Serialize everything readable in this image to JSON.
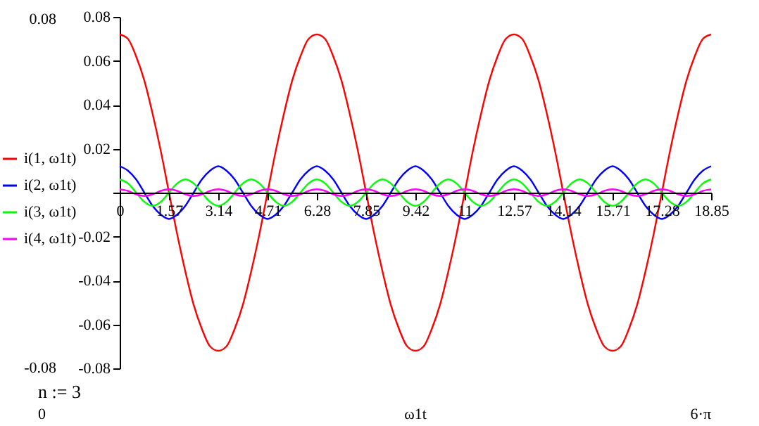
{
  "chart_data": {
    "type": "line",
    "xlabel": "ω1t",
    "x": [
      0,
      0.262,
      0.524,
      0.785,
      1.047,
      1.309,
      1.571,
      1.833,
      2.094,
      2.356,
      2.618,
      2.88,
      3.142,
      3.403,
      3.665,
      3.927,
      4.189,
      4.451,
      4.712,
      4.974,
      5.236,
      5.498,
      5.76,
      6.021,
      6.283,
      6.545,
      6.807,
      7.069,
      7.33,
      7.592,
      7.854,
      8.116,
      8.378,
      8.639,
      8.901,
      9.163,
      9.425,
      9.687,
      9.948,
      10.21,
      10.472,
      10.734,
      10.996,
      11.257,
      11.519,
      11.781,
      12.043,
      12.305,
      12.566,
      12.828,
      13.09,
      13.352,
      13.614,
      13.875,
      14.137,
      14.399,
      14.661,
      14.923,
      15.184,
      15.446,
      15.708,
      15.97,
      16.232,
      16.493,
      16.755,
      17.017,
      17.279,
      17.541,
      17.802,
      18.064,
      18.326,
      18.588,
      18.85
    ],
    "series": [
      {
        "name": "i(1, ω1t)",
        "color": "#ff0000",
        "values": [
          0.072,
          0.07,
          0.062,
          0.051,
          0.036,
          0.019,
          0,
          -0.019,
          -0.036,
          -0.051,
          -0.062,
          -0.07,
          -0.072,
          -0.07,
          -0.062,
          -0.051,
          -0.036,
          -0.019,
          0,
          0.019,
          0.036,
          0.051,
          0.062,
          0.07,
          0.072,
          0.07,
          0.062,
          0.051,
          0.036,
          0.019,
          0,
          -0.019,
          -0.036,
          -0.051,
          -0.062,
          -0.07,
          -0.072,
          -0.07,
          -0.062,
          -0.051,
          -0.036,
          -0.019,
          0,
          0.019,
          0.036,
          0.051,
          0.062,
          0.07,
          0.072,
          0.07,
          0.062,
          0.051,
          0.036,
          0.019,
          0,
          -0.019,
          -0.036,
          -0.051,
          -0.062,
          -0.07,
          -0.072,
          -0.07,
          -0.062,
          -0.051,
          -0.036,
          -0.019,
          0,
          0.019,
          0.036,
          0.051,
          0.062,
          0.07,
          0.072
        ]
      },
      {
        "name": "i(2, ω1t)",
        "color": "#0000ff",
        "values": [
          0.012,
          0.01,
          0.006,
          0,
          -0.006,
          -0.01,
          -0.012,
          -0.01,
          -0.006,
          0,
          0.006,
          0.01,
          0.012,
          0.01,
          0.006,
          0,
          -0.006,
          -0.01,
          -0.012,
          -0.01,
          -0.006,
          0,
          0.006,
          0.01,
          0.012,
          0.01,
          0.006,
          0,
          -0.006,
          -0.01,
          -0.012,
          -0.01,
          -0.006,
          0,
          0.006,
          0.01,
          0.012,
          0.01,
          0.006,
          0,
          -0.006,
          -0.01,
          -0.012,
          -0.01,
          -0.006,
          0,
          0.006,
          0.01,
          0.012,
          0.01,
          0.006,
          0,
          -0.006,
          -0.01,
          -0.012,
          -0.01,
          -0.006,
          0,
          0.006,
          0.01,
          0.012,
          0.01,
          0.006,
          0,
          -0.006,
          -0.01,
          -0.012,
          -0.01,
          -0.006,
          0,
          0.006,
          0.01,
          0.012
        ]
      },
      {
        "name": "i(3, ω1t)",
        "color": "#00ff00",
        "values": [
          0.006,
          0.0042,
          0,
          -0.0042,
          -0.006,
          -0.0042,
          0,
          0.0042,
          0.006,
          0.0042,
          0,
          -0.0042,
          -0.006,
          -0.0042,
          0,
          0.0042,
          0.006,
          0.0042,
          0,
          -0.0042,
          -0.006,
          -0.0042,
          0,
          0.0042,
          0.006,
          0.0042,
          0,
          -0.0042,
          -0.006,
          -0.0042,
          0,
          0.0042,
          0.006,
          0.0042,
          0,
          -0.0042,
          -0.006,
          -0.0042,
          0,
          0.0042,
          0.006,
          0.0042,
          0,
          -0.0042,
          -0.006,
          -0.0042,
          0,
          0.0042,
          0.006,
          0.0042,
          0,
          -0.0042,
          -0.006,
          -0.0042,
          0,
          0.0042,
          0.006,
          0.0042,
          0,
          -0.0042,
          -0.006,
          -0.0042,
          0,
          0.0042,
          0.006,
          0.0042,
          0,
          -0.0042,
          -0.006,
          -0.0042,
          0,
          0.0042,
          0.006
        ]
      },
      {
        "name": "i(4, ω1t)",
        "color": "#ff00ff",
        "values": [
          0.0015,
          0.0008,
          -0.0008,
          -0.0015,
          -0.0008,
          0.0008,
          0.0015,
          0.0008,
          -0.0008,
          -0.0015,
          -0.0008,
          0.0008,
          0.0015,
          0.0008,
          -0.0008,
          -0.0015,
          -0.0008,
          0.0008,
          0.0015,
          0.0008,
          -0.0008,
          -0.0015,
          -0.0008,
          0.0008,
          0.0015,
          0.0008,
          -0.0008,
          -0.0015,
          -0.0008,
          0.0008,
          0.0015,
          0.0008,
          -0.0008,
          -0.0015,
          -0.0008,
          0.0008,
          0.0015,
          0.0008,
          -0.0008,
          -0.0015,
          -0.0008,
          0.0008,
          0.0015,
          0.0008,
          -0.0008,
          -0.0015,
          -0.0008,
          0.0008,
          0.0015,
          0.0008,
          -0.0008,
          -0.0015,
          -0.0008,
          0.0008,
          0.0015,
          0.0008,
          -0.0008,
          -0.0015,
          -0.0008,
          0.0008,
          0.0015,
          0.0008,
          -0.0008,
          -0.0015,
          -0.0008,
          0.0008,
          0.0015,
          0.0008,
          -0.0008,
          -0.0015,
          -0.0008,
          0.0008,
          0.0015
        ]
      }
    ],
    "xlim": [
      0,
      18.85
    ],
    "xticks": [
      0,
      {
        "value": 1.571,
        "label": "1.57"
      },
      {
        "value": 3.142,
        "label": "3.14"
      },
      {
        "value": 4.712,
        "label": "4.71"
      },
      {
        "value": 6.283,
        "label": "6.28"
      },
      {
        "value": 7.854,
        "label": "7.85"
      },
      {
        "value": 9.425,
        "label": "9.42"
      },
      {
        "value": 10.996,
        "label": "11"
      },
      {
        "value": 12.566,
        "label": "12.57"
      },
      {
        "value": 14.137,
        "label": "14.14"
      },
      {
        "value": 15.708,
        "label": "15.71"
      },
      {
        "value": 17.279,
        "label": "17.28"
      },
      18.85
    ],
    "ylim": [
      -0.08,
      0.08
    ],
    "yticks": [
      -0.08,
      -0.06,
      -0.04,
      -0.02,
      {
        "value": 0,
        "label": null
      },
      0.02,
      0.04,
      0.06,
      0.08
    ],
    "legend": "left",
    "annotations": [
      "0.08",
      "-0.08",
      "n := 3",
      "0",
      "6·π"
    ]
  }
}
